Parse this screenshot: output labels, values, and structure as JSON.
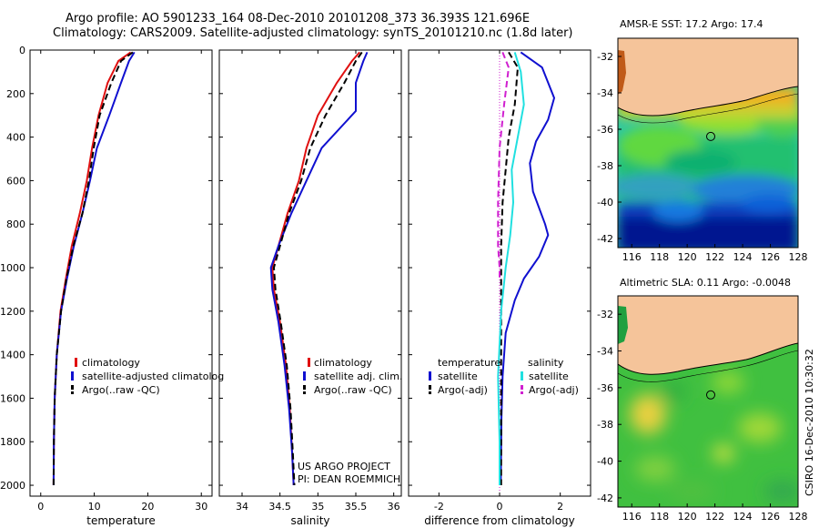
{
  "header": {
    "line1": "Argo profile: AO 5901233_164 08-Dec-2010 20101208_373 36.393S 121.696E",
    "line2": "Climatology: CARS2009. Satellite-adjusted climatology: synTS_20101210.nc (1.8d later)"
  },
  "footer": {
    "project": "US ARGO PROJECT",
    "pi": "PI: DEAN ROEMMICH",
    "credit": "CSIRO 16-Dec-2010 10:30:32"
  },
  "colors": {
    "climatology": "#e01010",
    "satellite": "#1010d0",
    "argo": "#000000",
    "satellite_diff_sal": "#20e0e0",
    "argo_diff_sal": "#d020d0",
    "land": "#f5c49a"
  },
  "chart_data": [
    {
      "type": "line",
      "xlabel": "temperature",
      "ylabel": "",
      "xlim": [
        -2,
        32
      ],
      "ylim": [
        2050,
        0
      ],
      "xticks": [
        0,
        10,
        20,
        30
      ],
      "yticks": [
        0,
        200,
        400,
        600,
        800,
        1000,
        1200,
        1400,
        1600,
        1800,
        2000
      ],
      "legend": [
        "climatology",
        "satellite-adjusted climatolog",
        "Argo(..raw -QC)"
      ],
      "series": [
        {
          "name": "climatology",
          "style": "solid",
          "x": [
            16.8,
            14.5,
            12.5,
            10.8,
            9.6,
            8.6,
            7.3,
            5.8,
            4.7,
            3.7,
            3.0,
            2.6,
            2.45,
            2.4
          ],
          "y": [
            10,
            50,
            150,
            300,
            450,
            600,
            750,
            900,
            1050,
            1200,
            1400,
            1600,
            1800,
            2000
          ]
        },
        {
          "name": "satellite-adjusted climatolog",
          "style": "solid",
          "x": [
            17.5,
            16.5,
            15.0,
            12.8,
            10.5,
            9.2,
            7.8,
            6.2,
            4.9,
            3.8,
            3.0,
            2.6,
            2.45,
            2.4
          ],
          "y": [
            10,
            50,
            150,
            300,
            450,
            600,
            750,
            900,
            1050,
            1200,
            1400,
            1600,
            1800,
            2000
          ]
        },
        {
          "name": "Argo(..raw -QC)",
          "style": "dashed",
          "x": [
            17.2,
            15.0,
            13.2,
            11.0,
            9.9,
            9.0,
            7.8,
            6.1,
            4.8,
            3.8,
            3.0,
            2.6,
            2.45,
            2.4
          ],
          "y": [
            10,
            50,
            150,
            300,
            450,
            600,
            750,
            900,
            1050,
            1200,
            1400,
            1600,
            1800,
            2000
          ]
        }
      ]
    },
    {
      "type": "line",
      "xlabel": "salinity",
      "ylabel": "",
      "xlim": [
        33.7,
        36.1
      ],
      "ylim": [
        2050,
        0
      ],
      "xticks": [
        34,
        34.5,
        35,
        35.5,
        36
      ],
      "legend": [
        "climatology",
        "satellite adj. clim.",
        "Argo(..raw -QC)"
      ],
      "series": [
        {
          "name": "climatology",
          "style": "solid",
          "x": [
            35.55,
            35.45,
            35.25,
            35.0,
            34.85,
            34.75,
            34.6,
            34.48,
            34.4,
            34.42,
            34.5,
            34.58,
            34.63,
            34.66,
            34.68
          ],
          "y": [
            10,
            50,
            150,
            300,
            450,
            600,
            750,
            900,
            1000,
            1100,
            1250,
            1450,
            1650,
            1850,
            2000
          ]
        },
        {
          "name": "satellite adj. clim.",
          "style": "solid",
          "x": [
            35.65,
            35.6,
            35.5,
            35.5,
            35.05,
            34.85,
            34.65,
            34.48,
            34.38,
            34.4,
            34.48,
            34.56,
            34.62,
            34.66,
            34.68
          ],
          "y": [
            10,
            50,
            150,
            280,
            450,
            600,
            750,
            900,
            1000,
            1100,
            1250,
            1450,
            1650,
            1850,
            2000
          ]
        },
        {
          "name": "Argo(..raw -QC)",
          "style": "dashed",
          "x": [
            35.58,
            35.5,
            35.35,
            35.1,
            34.9,
            34.78,
            34.62,
            34.5,
            34.42,
            34.44,
            34.51,
            34.59,
            34.64,
            34.67,
            34.69
          ],
          "y": [
            10,
            50,
            150,
            300,
            450,
            600,
            750,
            900,
            1000,
            1100,
            1250,
            1450,
            1650,
            1850,
            2000
          ]
        }
      ]
    },
    {
      "type": "line",
      "xlabel": "difference from climatology",
      "ylabel": "",
      "xlim": [
        -3,
        3
      ],
      "ylim": [
        2050,
        0
      ],
      "xticks": [
        -2,
        0,
        2
      ],
      "legend": [
        "temperature",
        "satellite",
        "Argo(-adj)",
        "salinity",
        "satellite",
        "Argo(-adj)"
      ],
      "series": [
        {
          "name": "satellite",
          "group": "temperature",
          "style": "solid",
          "x": [
            0.7,
            1.4,
            1.8,
            1.6,
            1.2,
            1.0,
            1.1,
            1.5,
            1.6,
            1.3,
            0.8,
            0.5,
            0.2,
            0.1,
            0.06,
            0.04
          ],
          "y": [
            10,
            80,
            220,
            320,
            420,
            520,
            650,
            800,
            850,
            950,
            1050,
            1150,
            1300,
            1500,
            1700,
            2000
          ]
        },
        {
          "name": "Argo(-adj)",
          "group": "temperature",
          "style": "dashed",
          "x": [
            0.3,
            0.6,
            0.5,
            0.3,
            0.2,
            0.1,
            0.05,
            0.05,
            0.05,
            0.05
          ],
          "y": [
            10,
            80,
            250,
            400,
            550,
            700,
            900,
            1200,
            1600,
            2000
          ]
        },
        {
          "name": "satellite",
          "group": "salinity",
          "style": "solid",
          "x": [
            0.5,
            0.7,
            0.8,
            0.6,
            0.4,
            0.45,
            0.35,
            0.2,
            0.05,
            -0.05,
            0.0,
            0.0
          ],
          "y": [
            10,
            100,
            250,
            400,
            550,
            700,
            850,
            1000,
            1200,
            1500,
            1800,
            2000
          ]
        },
        {
          "name": "Argo(-adj)",
          "group": "salinity",
          "style": "dashed",
          "x": [
            0.1,
            0.3,
            0.15,
            0.0,
            -0.05,
            -0.05,
            0.0,
            0.0
          ],
          "y": [
            10,
            80,
            250,
            450,
            700,
            900,
            1000,
            1050
          ]
        }
      ]
    },
    {
      "type": "heatmap",
      "title": "AMSR-E SST: 17.2 Argo: 17.4",
      "xlim": [
        115,
        128
      ],
      "ylim": [
        -42.5,
        -31
      ],
      "xticks": [
        116,
        118,
        120,
        122,
        124,
        126,
        128
      ],
      "yticks": [
        -32,
        -34,
        -36,
        -38,
        -40,
        -42
      ],
      "marker": {
        "lon": 121.696,
        "lat": -36.393
      }
    },
    {
      "type": "heatmap",
      "title": "Altimetric SLA: 0.11 Argo: -0.0048",
      "xlim": [
        115,
        128
      ],
      "ylim": [
        -42.5,
        -31
      ],
      "xticks": [
        116,
        118,
        120,
        122,
        124,
        126,
        128
      ],
      "yticks": [
        -32,
        -34,
        -36,
        -38,
        -40,
        -42
      ],
      "marker": {
        "lon": 121.696,
        "lat": -36.393
      }
    }
  ]
}
